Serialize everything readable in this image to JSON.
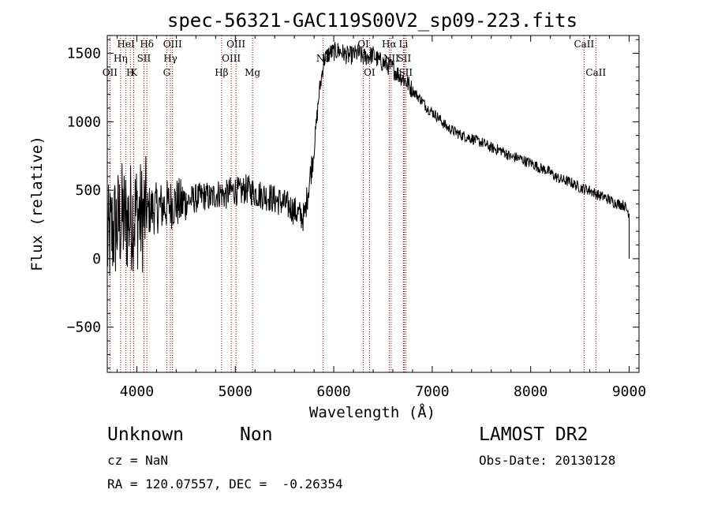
{
  "chart_data": {
    "type": "line",
    "title": "spec-56321-GAC119S00V2_sp09-223.fits",
    "xlabel": "Wavelength (Å)",
    "ylabel": "Flux (relative)",
    "xlim": [
      3700,
      9100
    ],
    "ylim": [
      -830,
      1630
    ],
    "xticks": [
      4000,
      5000,
      6000,
      7000,
      8000,
      9000
    ],
    "yticks": [
      -500,
      0,
      500,
      1000,
      1500
    ],
    "grid": false,
    "series": [
      {
        "x": [
          3700,
          3750,
          3800,
          3850,
          3900,
          3950,
          4000,
          4050,
          4100,
          4150,
          4200,
          4250,
          4300,
          4350,
          4400,
          4450,
          4500,
          4550,
          4600,
          4650,
          4700,
          4750,
          4800,
          4850,
          4900,
          4950,
          5000,
          5050,
          5100,
          5150,
          5200,
          5250,
          5300,
          5350,
          5400,
          5450,
          5500,
          5550,
          5600,
          5650,
          5700,
          5750,
          5800,
          5850,
          5900,
          5950,
          6000,
          6050,
          6100,
          6150,
          6200,
          6250,
          6300,
          6350,
          6400,
          6450,
          6500,
          6550,
          6600,
          6650,
          6700,
          6750,
          6800,
          6850,
          6900,
          6950,
          7000,
          7050,
          7100,
          7150,
          7200,
          7250,
          7300,
          7350,
          7400,
          7450,
          7500,
          7550,
          7600,
          7650,
          7700,
          7750,
          7800,
          7850,
          7900,
          7950,
          8000,
          8050,
          8100,
          8150,
          8200,
          8250,
          8300,
          8350,
          8400,
          8450,
          8500,
          8550,
          8600,
          8650,
          8700,
          8750,
          8800,
          8850,
          8900,
          8950,
          9000
        ],
        "y": [
          100,
          200,
          250,
          300,
          280,
          320,
          330,
          300,
          340,
          360,
          370,
          380,
          390,
          400,
          410,
          400,
          420,
          430,
          440,
          450,
          460,
          440,
          470,
          480,
          460,
          490,
          500,
          480,
          510,
          500,
          480,
          470,
          460,
          450,
          430,
          420,
          400,
          380,
          350,
          320,
          300,
          550,
          800,
          1200,
          1450,
          1500,
          1510,
          1520,
          1500,
          1480,
          1490,
          1500,
          1470,
          1480,
          1490,
          1450,
          1430,
          1410,
          1390,
          1350,
          1320,
          1280,
          1230,
          1190,
          1150,
          1100,
          1070,
          1040,
          1000,
          960,
          940,
          920,
          900,
          890,
          880,
          860,
          850,
          830,
          810,
          800,
          790,
          770,
          740,
          740,
          730,
          710,
          700,
          680,
          660,
          650,
          630,
          600,
          580,
          570,
          560,
          540,
          520,
          510,
          500,
          480,
          460,
          450,
          430,
          410,
          400,
          390,
          330
        ]
      }
    ],
    "lines": [
      {
        "name": "OII",
        "x": 3727,
        "row": 3
      },
      {
        "name": "Hη",
        "x": 3835,
        "row": 2
      },
      {
        "name": "HeI",
        "x": 3889,
        "row": 1
      },
      {
        "name": "H",
        "x": 3934,
        "row": 3
      },
      {
        "name": "K",
        "x": 3969,
        "row": 3
      },
      {
        "name": "Hδ",
        "x": 4102,
        "row": 1
      },
      {
        "name": "SII",
        "x": 4072,
        "row": 2
      },
      {
        "name": "OIII",
        "x": 4363,
        "row": 1
      },
      {
        "name": "Hγ",
        "x": 4341,
        "row": 2
      },
      {
        "name": "G",
        "x": 4304,
        "row": 3
      },
      {
        "name": "Hβ",
        "x": 4861,
        "row": 3
      },
      {
        "name": "OIII",
        "x": 4959,
        "row": 2
      },
      {
        "name": "OIII",
        "x": 5007,
        "row": 1
      },
      {
        "name": "Mg",
        "x": 5175,
        "row": 3
      },
      {
        "name": "Na",
        "x": 5893,
        "row": 2
      },
      {
        "name": "OI",
        "x": 6300,
        "row": 1
      },
      {
        "name": "OI",
        "x": 6363,
        "row": 3
      },
      {
        "name": "NII",
        "x": 6583,
        "row": 2
      },
      {
        "name": "Hα",
        "x": 6563,
        "row": 1
      },
      {
        "name": "Li",
        "x": 6708,
        "row": 1
      },
      {
        "name": "SII",
        "x": 6716,
        "row": 2
      },
      {
        "name": "SII",
        "x": 6731,
        "row": 3
      },
      {
        "name": "CaII",
        "x": 8542,
        "row": 1
      },
      {
        "name": "CaII",
        "x": 8662,
        "row": 3
      }
    ]
  },
  "footer": {
    "object_class": "Unknown",
    "subclass": "Non",
    "cz": "cz = NaN",
    "coords": "RA = 120.07557, DEC =  -0.26354",
    "survey": "LAMOST DR2",
    "obs_date": "Obs-Date: 20130128"
  }
}
